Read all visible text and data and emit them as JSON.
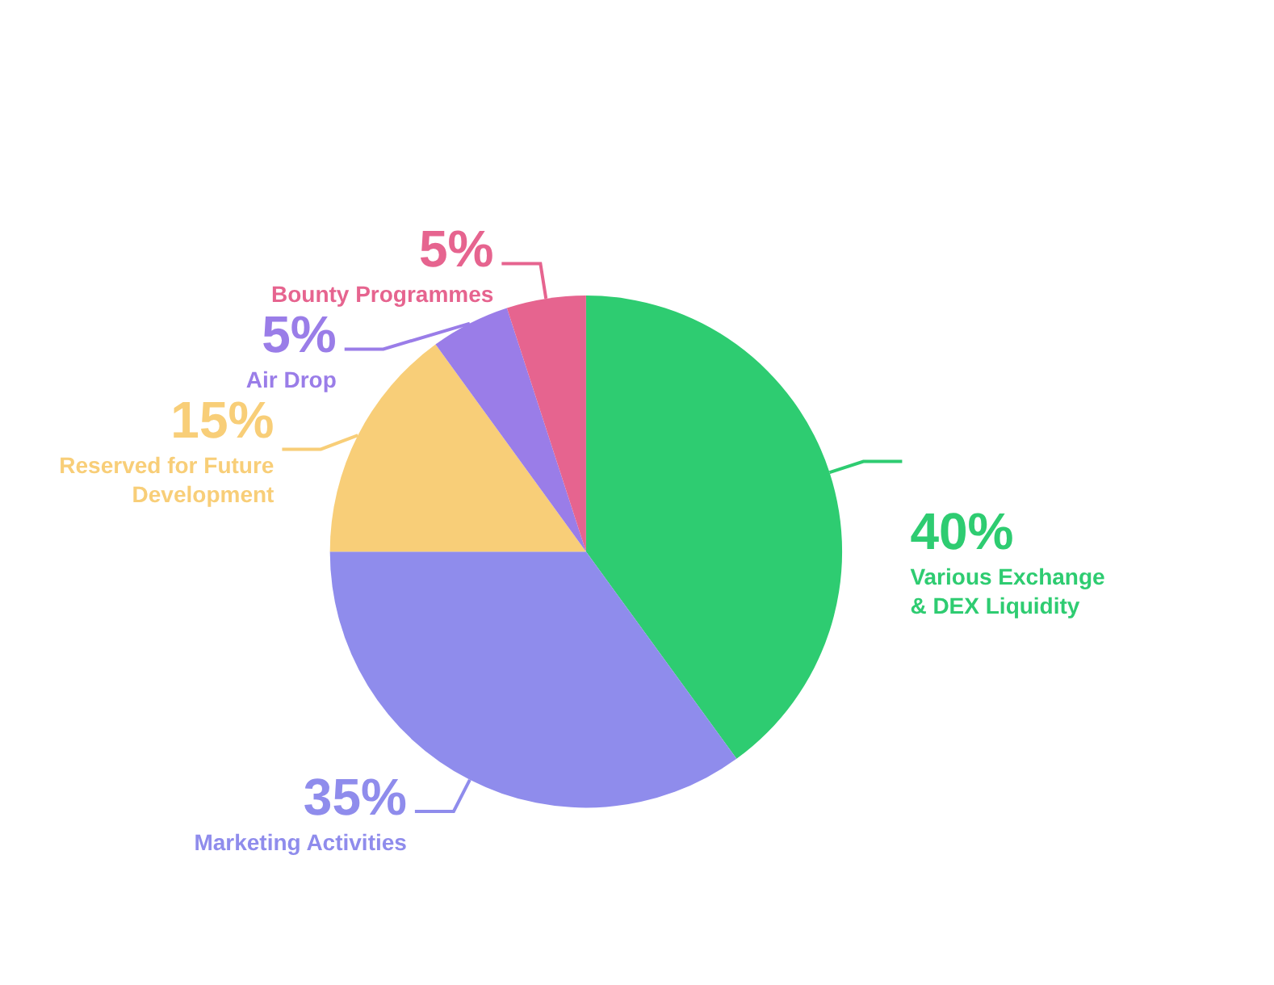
{
  "chart_data": {
    "type": "pie",
    "categories": [
      "Various Exchange & DEX Liquidity",
      "Marketing Activities",
      "Reserved for Future Development",
      "Air Drop",
      "Bounty Programmes"
    ],
    "values": [
      40,
      35,
      15,
      5,
      5
    ],
    "colors": [
      "#2ecc71",
      "#8f8cec",
      "#f8ce78",
      "#9a7de8",
      "#e6648f"
    ],
    "value_labels": [
      "40%",
      "35%",
      "15%",
      "5%",
      "5%"
    ]
  }
}
